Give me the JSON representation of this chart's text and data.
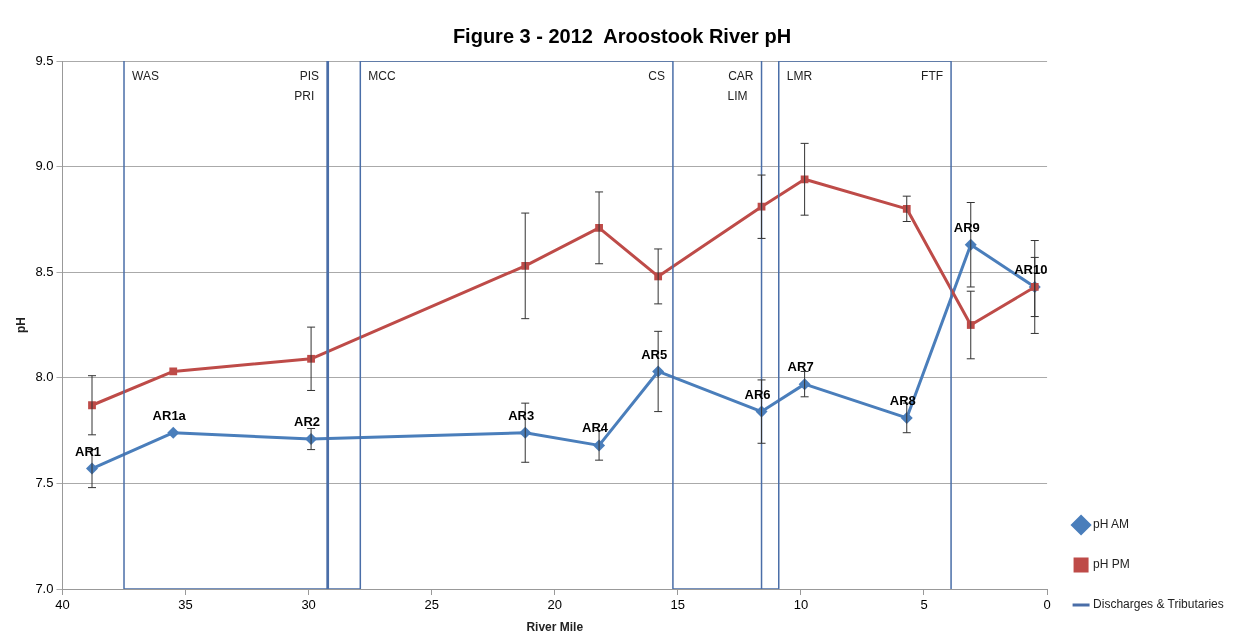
{
  "chart_data": {
    "type": "line",
    "title": "Figure 3 - 2012  Aroostook River pH",
    "xlabel": "River Mile",
    "ylabel": "pH",
    "xlim": [
      40,
      0
    ],
    "xticks": [
      40,
      35,
      30,
      25,
      20,
      15,
      10,
      5,
      0
    ],
    "ylim": [
      7.0,
      9.5
    ],
    "yticks": [
      {
        "value": 7.0,
        "label": "7.0"
      },
      {
        "value": 7.5,
        "label": "7.5"
      },
      {
        "value": 8.0,
        "label": "8.0"
      },
      {
        "value": 8.5,
        "label": "8.5"
      },
      {
        "value": 9.0,
        "label": "9.0"
      },
      {
        "value": 9.5,
        "label": "9.5"
      }
    ],
    "grid": "y",
    "legend": "right",
    "line_style": "solid",
    "x": [
      38.8,
      35.5,
      29.9,
      21.2,
      18.2,
      15.8,
      11.6,
      9.85,
      5.7,
      3.1,
      0.5
    ],
    "series": [
      {
        "name": "pH AM",
        "color": "#4a7ebb",
        "marker": "diamond",
        "values": [
          7.57,
          7.74,
          7.71,
          7.74,
          7.68,
          8.03,
          7.84,
          7.97,
          7.81,
          8.63,
          8.43
        ],
        "errors": [
          0.09,
          null,
          0.05,
          0.14,
          0.07,
          0.19,
          0.15,
          0.06,
          0.07,
          0.2,
          0.14
        ],
        "value_labels": [
          "AR1",
          "AR1a",
          "AR2",
          "AR3",
          "AR4",
          "AR5",
          "AR6",
          "AR7",
          "AR8",
          "AR9",
          "AR10"
        ]
      },
      {
        "name": "pH PM",
        "color": "#be4b48",
        "marker": "square",
        "values": [
          7.87,
          8.03,
          8.09,
          8.53,
          8.71,
          8.48,
          8.81,
          8.94,
          8.8,
          8.25,
          8.43
        ],
        "errors": [
          0.14,
          null,
          0.15,
          0.25,
          0.17,
          0.13,
          0.15,
          0.17,
          0.06,
          0.16,
          0.22
        ]
      },
      {
        "name": "Discharges & Tributaries",
        "color": "#4a6ea8",
        "marker": "none",
        "x": [
          37.5,
          37.5,
          29.25,
          29.25,
          29.2,
          29.2,
          27.9,
          27.9,
          15.2,
          15.2,
          11.6,
          11.6,
          11.6,
          11.6,
          10.9,
          10.9,
          3.9,
          3.9
        ],
        "values": [
          9.5,
          7.0,
          7.0,
          9.5,
          9.5,
          7.0,
          7.0,
          9.5,
          9.5,
          7.0,
          7.0,
          9.5,
          9.5,
          7.0,
          7.0,
          9.5,
          9.5,
          7.0
        ]
      }
    ],
    "annotations": [
      {
        "text": "WAS",
        "x": 37.5,
        "y": 9.5
      },
      {
        "text": "PIS",
        "x": 29.25,
        "y": 9.5
      },
      {
        "text": "PRI",
        "x": 29.2,
        "y": 9.5
      },
      {
        "text": "MCC",
        "x": 27.9,
        "y": 9.5
      },
      {
        "text": "CS",
        "x": 15.2,
        "y": 9.5
      },
      {
        "text": "CAR",
        "x": 11.6,
        "y": 9.5
      },
      {
        "text": "LIM",
        "x": 11.6,
        "y": 9.5
      },
      {
        "text": "LMR",
        "x": 10.9,
        "y": 9.5
      },
      {
        "text": "FTF",
        "x": 3.9,
        "y": 9.5
      }
    ]
  }
}
